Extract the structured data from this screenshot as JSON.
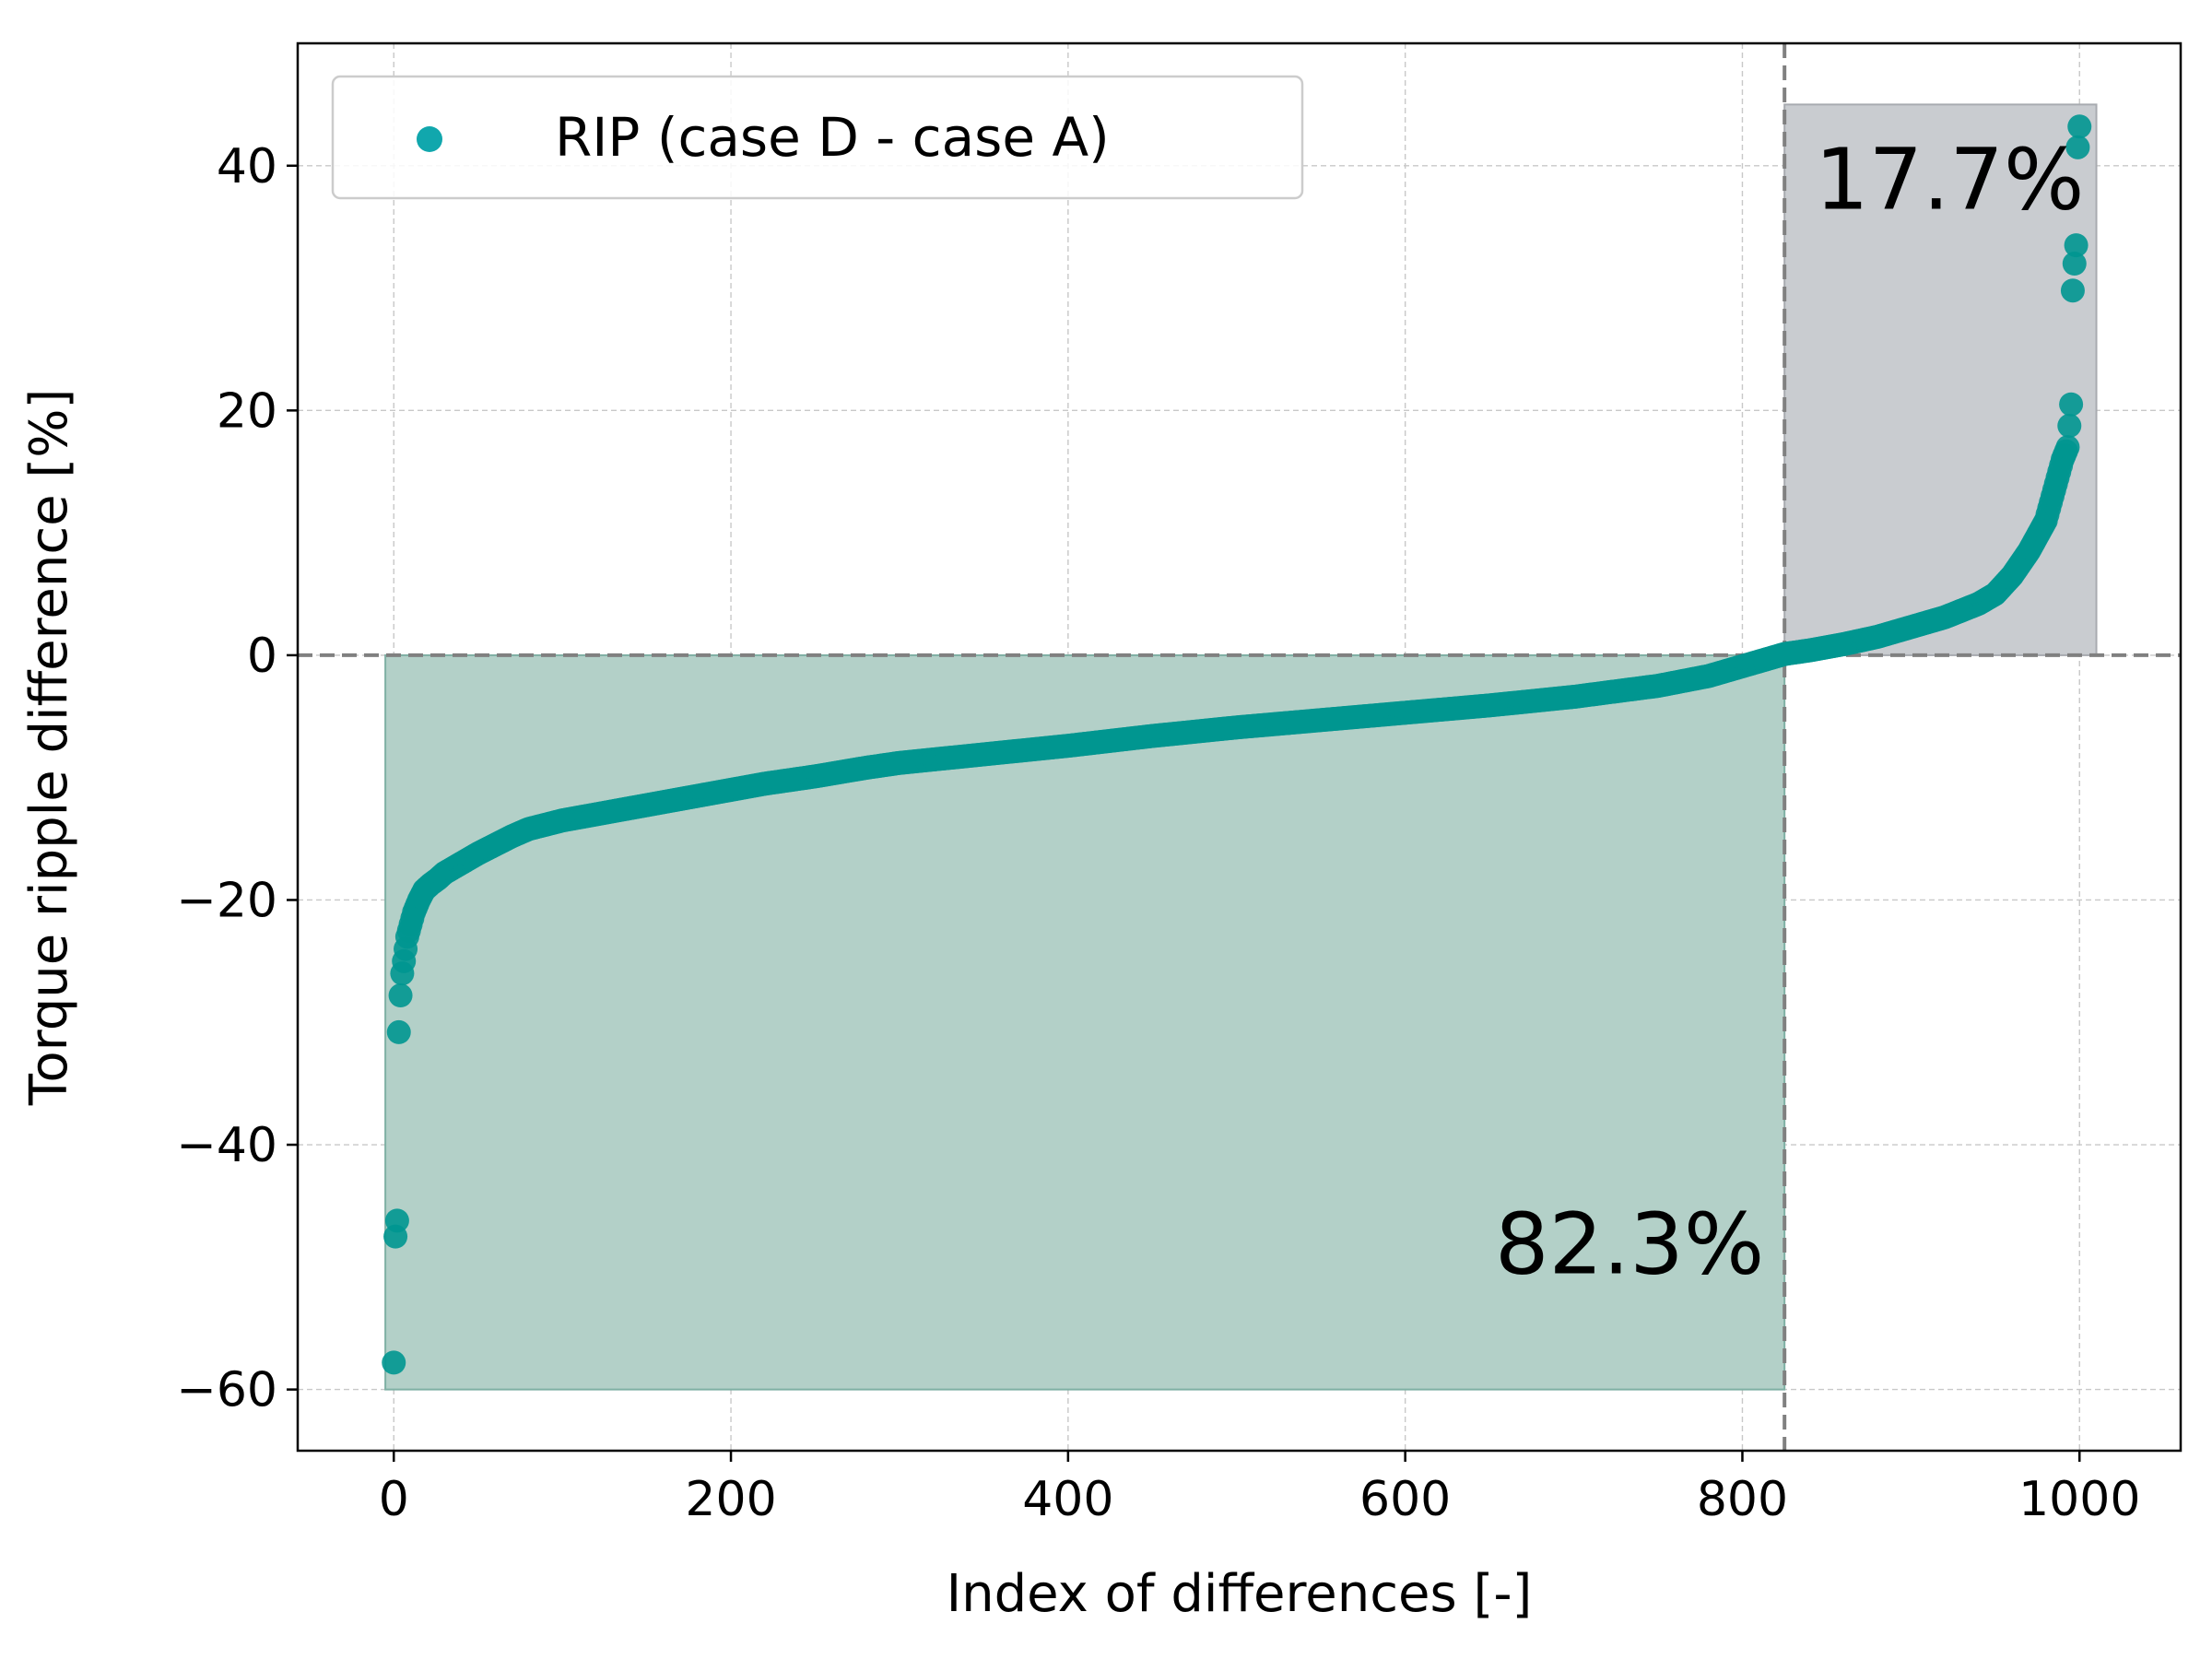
{
  "chart_data": {
    "type": "scatter",
    "title": "",
    "xlabel": "Index of differences [-]",
    "ylabel": "Torque ripple difference [%]",
    "xlim": [
      -57,
      1060
    ],
    "ylim": [
      -65,
      50
    ],
    "xticks": [
      0,
      200,
      400,
      600,
      800,
      1000
    ],
    "xtick_labels": [
      "0",
      "200",
      "400",
      "600",
      "800",
      "1000"
    ],
    "yticks": [
      -60,
      -40,
      -20,
      0,
      20,
      40
    ],
    "ytick_labels": [
      "−60",
      "−40",
      "−20",
      "0",
      "20",
      "40"
    ],
    "grid": true,
    "legend": {
      "position": "top-left",
      "entries": [
        "RIP (case D - case A)"
      ]
    },
    "series": [
      {
        "name": "RIP (case D - case A)",
        "color": "#009690",
        "x": [
          0,
          1,
          2,
          3,
          4,
          5,
          6,
          7,
          8,
          10,
          12,
          15,
          18,
          22,
          26,
          30,
          40,
          50,
          60,
          70,
          80,
          100,
          120,
          140,
          160,
          180,
          200,
          220,
          250,
          280,
          300,
          350,
          400,
          450,
          500,
          550,
          600,
          650,
          700,
          750,
          780,
          800,
          815,
          825,
          840,
          860,
          880,
          900,
          920,
          940,
          950,
          960,
          970,
          980,
          985,
          990,
          993,
          995,
          996,
          997,
          998,
          999,
          1000
        ],
        "y": [
          -57.8,
          -47.5,
          -46.2,
          -30.8,
          -27.8,
          -26.0,
          -25.0,
          -24.0,
          -23.0,
          -22.0,
          -21.0,
          -20.0,
          -19.2,
          -18.7,
          -18.3,
          -17.8,
          -17.0,
          -16.2,
          -15.5,
          -14.8,
          -14.2,
          -13.5,
          -13.0,
          -12.5,
          -12.0,
          -11.5,
          -11.0,
          -10.5,
          -9.9,
          -9.2,
          -8.8,
          -8.1,
          -7.4,
          -6.6,
          -5.9,
          -5.3,
          -4.7,
          -4.1,
          -3.4,
          -2.5,
          -1.7,
          -0.9,
          -0.3,
          0.1,
          0.4,
          0.9,
          1.5,
          2.3,
          3.1,
          4.2,
          5.0,
          6.5,
          8.5,
          11.0,
          13.5,
          16.0,
          17.0,
          20.5,
          29.8,
          32.0,
          33.5,
          41.5,
          43.2
        ]
      }
    ],
    "shaded_regions": [
      {
        "name": "negative",
        "x": [
          -5,
          825
        ],
        "y": [
          -60,
          0
        ],
        "color": "#b3d0c8"
      },
      {
        "name": "positive",
        "x": [
          825,
          1010
        ],
        "y": [
          0,
          45
        ],
        "color": "#c9ccd0"
      }
    ],
    "reference_lines": {
      "x": 825,
      "y": 0
    },
    "annotations": [
      {
        "text": "82.3%",
        "x": 813,
        "y": -50.5,
        "anchor": "end"
      },
      {
        "text": "17.7%",
        "x": 843,
        "y": 36.5,
        "anchor": "start"
      }
    ]
  }
}
